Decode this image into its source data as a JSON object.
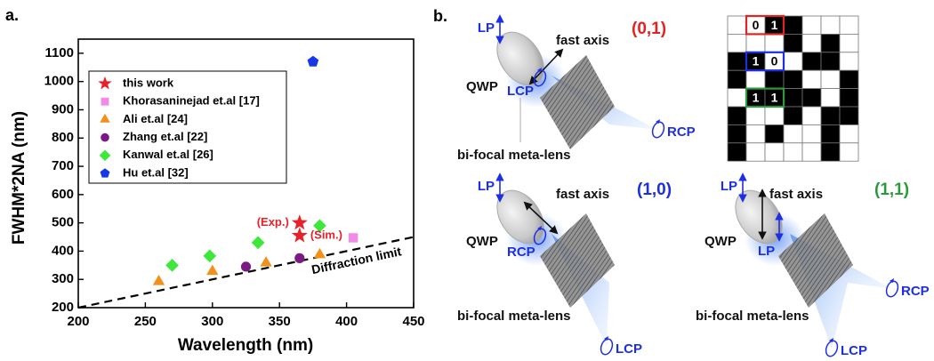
{
  "chart_data": {
    "type": "scatter",
    "panel_label": "a.",
    "x_label": "Wavelength (nm)",
    "y_label": "FWHM*2NA (nm)",
    "xlim": [
      200,
      450
    ],
    "xticks": [
      200,
      250,
      300,
      350,
      400,
      450
    ],
    "ylim": [
      200,
      1150
    ],
    "yticks": [
      200,
      300,
      400,
      500,
      600,
      700,
      800,
      900,
      1000,
      1100
    ],
    "series": [
      {
        "name": "this work",
        "color": "#e8202a",
        "marker": "star",
        "x": [
          365,
          365
        ],
        "values": [
          500,
          455
        ]
      },
      {
        "name": "Khorasaninejad et.al [17]",
        "color": "#f08ce8",
        "marker": "square",
        "x": [
          405
        ],
        "values": [
          447
        ]
      },
      {
        "name": "Ali et.al [24]",
        "color": "#f39019",
        "marker": "triangle",
        "x": [
          260,
          300,
          340,
          380
        ],
        "values": [
          292,
          328,
          358,
          387
        ]
      },
      {
        "name": "Zhang et.al [22]",
        "color": "#7b1a85",
        "marker": "circle",
        "x": [
          325,
          365
        ],
        "values": [
          345,
          375
        ]
      },
      {
        "name": "Kanwal et.al [26]",
        "color": "#3ee83a",
        "marker": "diamond",
        "x": [
          270,
          298,
          334,
          380
        ],
        "values": [
          350,
          383,
          430,
          490
        ]
      },
      {
        "name": "Hu et.al [32]",
        "color": "#1738e8",
        "marker": "pentagon",
        "x": [
          375
        ],
        "values": [
          1070
        ]
      }
    ],
    "annotations": [
      "(Exp.)",
      "(Sim.)"
    ],
    "reference_line": {
      "label": "Diffraction limit",
      "x": [
        200,
        450
      ],
      "y": [
        200,
        450
      ]
    }
  },
  "panel_b": {
    "label": "b.",
    "grid_labels": [
      "0",
      "1",
      "1",
      "0",
      "1",
      "1"
    ],
    "diagrams": [
      {
        "state": "(0,1)",
        "input": "LP",
        "axis": "fast axis",
        "qwp": "QWP",
        "output": "LCP",
        "lens": "bi-focal meta-lens",
        "foci": [
          "RCP"
        ]
      },
      {
        "state": "(1,0)",
        "input": "LP",
        "axis": "fast axis",
        "qwp": "QWP",
        "output": "RCP",
        "lens": "bi-focal meta-lens",
        "foci": [
          "LCP"
        ]
      },
      {
        "state": "(1,1)",
        "input": "LP",
        "axis": "fast axis",
        "qwp": "QWP",
        "output": "LP",
        "lens": "bi-focal meta-lens",
        "foci": [
          "RCP",
          "LCP"
        ]
      }
    ]
  }
}
